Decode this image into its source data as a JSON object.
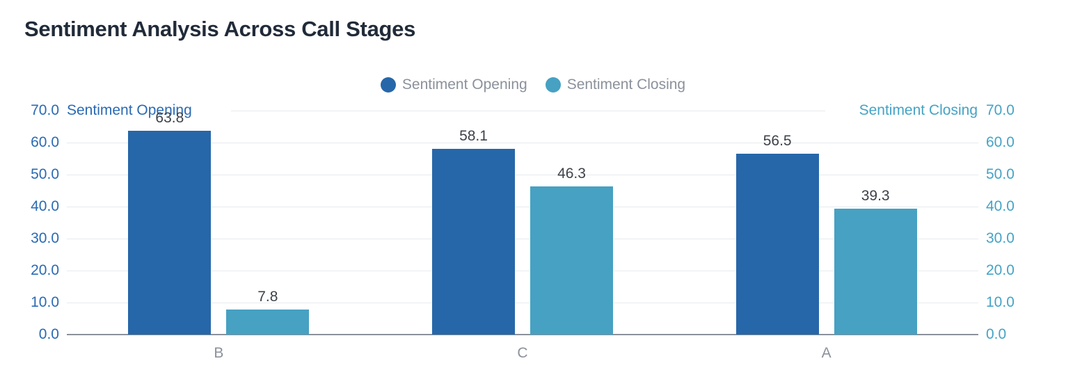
{
  "page": {
    "title": "Sentiment Analysis Across Call Stages"
  },
  "chart_data": {
    "type": "bar",
    "title": "Sentiment Analysis Across Call Stages",
    "categories": [
      "B",
      "C",
      "A"
    ],
    "series": [
      {
        "name": "Sentiment Opening",
        "axis": "left",
        "color": "#2667a9",
        "values": [
          63.8,
          58.1,
          56.5
        ]
      },
      {
        "name": "Sentiment Closing",
        "axis": "right",
        "color": "#46a1c2",
        "values": [
          7.8,
          46.3,
          39.3
        ]
      }
    ],
    "left_axis": {
      "title": "Sentiment Opening",
      "min": 0,
      "max": 70,
      "tick_step": 10,
      "tick_labels": [
        "0.0",
        "10.0",
        "20.0",
        "30.0",
        "40.0",
        "50.0",
        "60.0",
        "70.0"
      ],
      "color": "#2a6ab3"
    },
    "right_axis": {
      "title": "Sentiment Closing",
      "min": 0,
      "max": 70,
      "tick_step": 10,
      "tick_labels": [
        "0.0",
        "10.0",
        "20.0",
        "30.0",
        "40.0",
        "50.0",
        "60.0",
        "70.0"
      ],
      "color": "#45a3c5"
    },
    "legend_position": "top-center",
    "grid": true,
    "data_labels": [
      [
        "63.8",
        "58.1",
        "56.5"
      ],
      [
        "7.8",
        "46.3",
        "39.3"
      ]
    ]
  }
}
